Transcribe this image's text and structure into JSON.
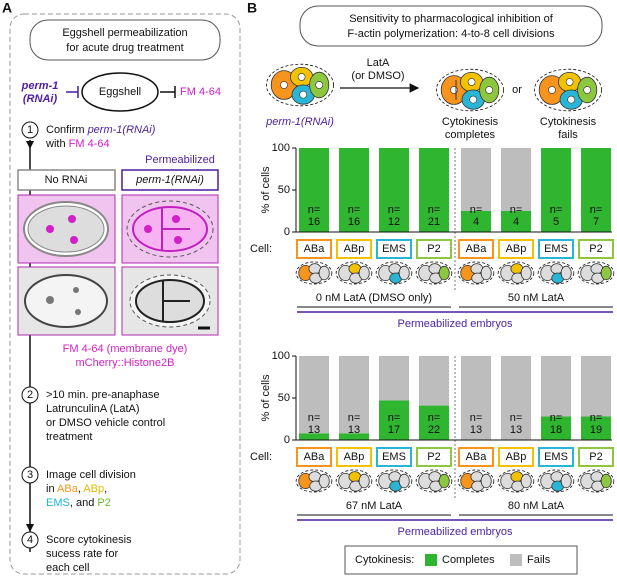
{
  "panel_a": {
    "label": "A",
    "title": [
      "Eggshell permeabilization",
      "for acute drug treatment"
    ],
    "perm1": [
      "perm-1",
      "(RNAi)"
    ],
    "eggshell": "Eggshell",
    "fm": "FM 4-64",
    "steps": [
      {
        "num": 1,
        "lines": [
          [
            "Confirm ",
            "perm-1(RNAi)"
          ],
          [
            "with ",
            "FM 4-64"
          ]
        ]
      },
      {
        "num": 2,
        "lines": [
          [
            ">10 min. pre-anaphase"
          ],
          [
            "LatrunculinA (LatA)"
          ],
          [
            "or DMSO vehicle control"
          ],
          [
            "treatment"
          ]
        ]
      },
      {
        "num": 3,
        "lines": [
          [
            "Image cell division"
          ],
          [
            "in ",
            "ABa",
            ", ",
            "ABp",
            ","
          ],
          [
            "EMS",
            ", and ",
            "P2"
          ]
        ]
      },
      {
        "num": 4,
        "lines": [
          [
            "Score cytokinesis"
          ],
          [
            "sucess rate for"
          ],
          [
            "each cell"
          ]
        ]
      }
    ],
    "permeabilized": "Permeabilized",
    "no_rnai": "No RNAi",
    "perm1_rnai": "perm-1(RNAi)",
    "stain": [
      "FM 4-64 (membrane dye)",
      "mCherry::Histone2B"
    ]
  },
  "panel_b": {
    "label": "B",
    "title": [
      "Sensitivity to pharmacological inhibition of",
      "F-actin polymerization: 4-to-8 cell divisions"
    ],
    "perm1_rnai": "perm-1(RNAi)",
    "treatment": [
      "LatA",
      "(or DMSO)"
    ],
    "completes": [
      "Cytokinesis",
      "completes"
    ],
    "or": "or",
    "fails": [
      "Cytokinesis",
      "fails"
    ],
    "legend_title": "Cytokinesis:"
  },
  "chart_data": [
    {
      "type": "bar",
      "stacked": true,
      "ylabel": "% of cells",
      "categories": [
        "ABa",
        "ABp",
        "EMS",
        "P2",
        "ABa",
        "ABp",
        "EMS",
        "P2"
      ],
      "category_colors": [
        "#f7941d",
        "#f2c200",
        "#29b6d6",
        "#8dc63f",
        "#f7941d",
        "#f2c200",
        "#29b6d6",
        "#8dc63f"
      ],
      "series": [
        {
          "name": "Completes",
          "color": "#2fb52f",
          "values": [
            100,
            100,
            100,
            100,
            25,
            25,
            100,
            100
          ]
        },
        {
          "name": "Fails",
          "color": "#bdbdbd",
          "values": [
            0,
            0,
            0,
            0,
            75,
            75,
            0,
            0
          ]
        }
      ],
      "n_label": "n=",
      "n": [
        16,
        16,
        12,
        21,
        4,
        4,
        5,
        7
      ],
      "cell_label": "Cell:",
      "group_labels": [
        "0 nM LatA (DMSO only)",
        "50 nM LatA"
      ],
      "footer": "Permeabilized embryos",
      "ylim": [
        0,
        100
      ],
      "yticks": [
        0,
        50,
        100
      ]
    },
    {
      "type": "bar",
      "stacked": true,
      "ylabel": "% of cells",
      "categories": [
        "ABa",
        "ABp",
        "EMS",
        "P2",
        "ABa",
        "ABp",
        "EMS",
        "P2"
      ],
      "category_colors": [
        "#f7941d",
        "#f2c200",
        "#29b6d6",
        "#8dc63f",
        "#f7941d",
        "#f2c200",
        "#29b6d6",
        "#8dc63f"
      ],
      "series": [
        {
          "name": "Completes",
          "color": "#2fb52f",
          "values": [
            8,
            8,
            47,
            41,
            0,
            0,
            28,
            28
          ]
        },
        {
          "name": "Fails",
          "color": "#bdbdbd",
          "values": [
            92,
            92,
            53,
            59,
            100,
            100,
            72,
            72
          ]
        }
      ],
      "n_label": "n=",
      "n": [
        13,
        13,
        17,
        22,
        13,
        13,
        18,
        19
      ],
      "cell_label": "Cell:",
      "group_labels": [
        "67 nM LatA",
        "80 nM LatA"
      ],
      "footer": "Permeabilized embryos",
      "ylim": [
        0,
        100
      ],
      "yticks": [
        0,
        50,
        100
      ]
    }
  ]
}
